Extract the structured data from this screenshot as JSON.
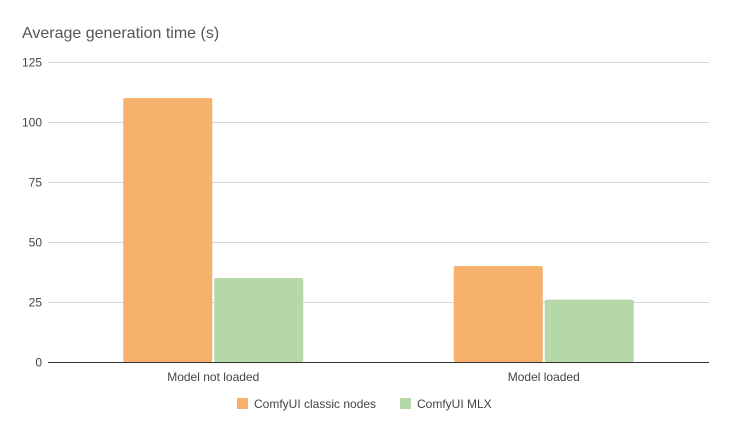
{
  "chart_data": {
    "type": "bar",
    "title": "Average generation time (s)",
    "xlabel": "",
    "ylabel": "",
    "categories": [
      "Model not loaded",
      "Model loaded"
    ],
    "series": [
      {
        "name": "ComfyUI classic nodes",
        "color": "#f6b26b",
        "values": [
          110,
          40
        ]
      },
      {
        "name": "ComfyUI MLX",
        "color": "#b6d7a8",
        "values": [
          35,
          26
        ]
      }
    ],
    "ylim": [
      0,
      125
    ],
    "yticks": [
      "0",
      "25",
      "50",
      "75",
      "100",
      "125"
    ],
    "grid": true,
    "legend_position": "bottom"
  }
}
